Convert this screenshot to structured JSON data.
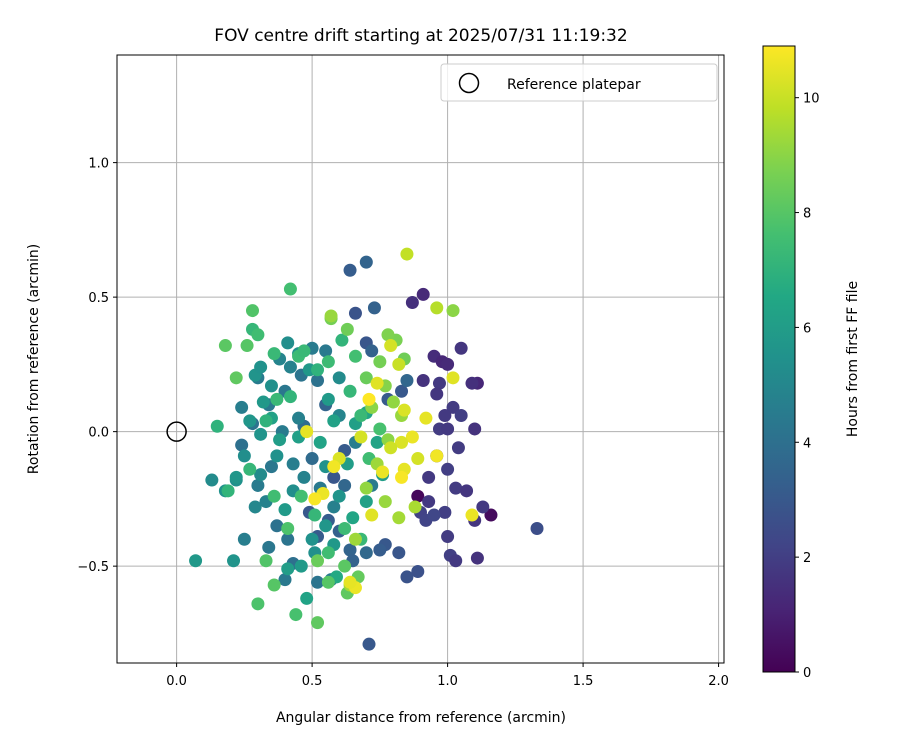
{
  "chart_data": {
    "type": "scatter",
    "title": "FOV centre drift starting at 2025/07/31 11:19:32",
    "xlabel": "Angular distance from reference (arcmin)",
    "ylabel": "Rotation from reference (arcmin)",
    "xlim": [
      -0.22,
      2.02
    ],
    "ylim": [
      -0.86,
      1.4
    ],
    "x_ticks": [
      0.0,
      0.5,
      1.0,
      1.5,
      2.0
    ],
    "x_tick_labels": [
      "0.0",
      "0.5",
      "1.0",
      "1.5",
      "2.0"
    ],
    "y_ticks": [
      -0.5,
      0.0,
      0.5,
      1.0
    ],
    "y_tick_labels": [
      "−0.5",
      "0.0",
      "0.5",
      "1.0"
    ],
    "grid": true,
    "legend": {
      "placement": "upper-right",
      "entries": [
        {
          "label": "Reference platepar",
          "marker": "open-circle"
        }
      ]
    },
    "reference_point": {
      "x": 0.0,
      "y": 0.0
    },
    "colorbar": {
      "label": "Hours from first FF file",
      "colormap": "viridis",
      "range": [
        0,
        10.9
      ],
      "ticks": [
        0,
        2,
        4,
        6,
        8,
        10
      ],
      "tick_labels": [
        "0",
        "2",
        "4",
        "6",
        "8",
        "10"
      ]
    },
    "series": [
      {
        "x_y_hours": [
          [
            0.89,
            -0.24,
            0.2
          ],
          [
            1.16,
            -0.31,
            0.3
          ],
          [
            0.91,
            0.51,
            1.3
          ],
          [
            0.87,
            0.48,
            1.5
          ],
          [
            0.95,
            0.28,
            1.4
          ],
          [
            0.98,
            0.26,
            1.2
          ],
          [
            1.0,
            0.25,
            1.3
          ],
          [
            0.97,
            0.18,
            1.8
          ],
          [
            1.11,
            0.18,
            1.2
          ],
          [
            1.09,
            0.18,
            1.5
          ],
          [
            1.05,
            0.31,
            1.7
          ],
          [
            0.91,
            0.19,
            1.6
          ],
          [
            0.96,
            0.14,
            1.7
          ],
          [
            1.02,
            0.09,
            1.9
          ],
          [
            0.99,
            0.06,
            1.8
          ],
          [
            1.05,
            0.06,
            2.0
          ],
          [
            0.97,
            0.01,
            1.9
          ],
          [
            1.0,
            0.01,
            1.8
          ],
          [
            1.1,
            0.01,
            1.6
          ],
          [
            1.04,
            -0.06,
            1.9
          ],
          [
            0.96,
            -0.09,
            1.7
          ],
          [
            1.0,
            -0.14,
            2.0
          ],
          [
            0.93,
            -0.17,
            1.8
          ],
          [
            1.03,
            -0.21,
            1.9
          ],
          [
            1.07,
            -0.22,
            1.7
          ],
          [
            0.93,
            -0.26,
            1.8
          ],
          [
            0.99,
            -0.3,
            2.0
          ],
          [
            1.13,
            -0.28,
            1.8
          ],
          [
            1.1,
            -0.33,
            1.7
          ],
          [
            1.0,
            -0.39,
            1.9
          ],
          [
            1.01,
            -0.46,
            2.0
          ],
          [
            1.03,
            -0.48,
            1.8
          ],
          [
            1.11,
            -0.47,
            1.6
          ],
          [
            0.9,
            -0.3,
            2.1
          ],
          [
            0.92,
            -0.33,
            2.2
          ],
          [
            0.95,
            -0.31,
            2.3
          ],
          [
            1.33,
            -0.36,
            2.6
          ],
          [
            0.85,
            -0.54,
            2.8
          ],
          [
            0.89,
            -0.52,
            2.7
          ],
          [
            0.82,
            -0.45,
            2.9
          ],
          [
            0.77,
            -0.42,
            3.0
          ],
          [
            0.75,
            -0.44,
            3.2
          ],
          [
            0.71,
            -0.79,
            3.0
          ],
          [
            0.64,
            0.6,
            3.2
          ],
          [
            0.7,
            0.63,
            3.5
          ],
          [
            0.73,
            0.46,
            3.4
          ],
          [
            0.66,
            0.44,
            2.8
          ],
          [
            0.7,
            0.33,
            2.9
          ],
          [
            0.72,
            0.3,
            3.4
          ],
          [
            0.83,
            0.15,
            3.0
          ],
          [
            0.78,
            0.12,
            3.1
          ],
          [
            0.85,
            0.19,
            3.6
          ],
          [
            0.55,
            0.1,
            3.5
          ],
          [
            0.5,
            -0.1,
            3.8
          ],
          [
            0.47,
            0.02,
            3.9
          ],
          [
            0.62,
            -0.2,
            3.6
          ],
          [
            0.64,
            -0.44,
            3.5
          ],
          [
            0.65,
            -0.48,
            3.4
          ],
          [
            0.7,
            -0.45,
            3.7
          ],
          [
            0.6,
            -0.37,
            3.3
          ],
          [
            0.56,
            -0.33,
            3.2
          ],
          [
            0.52,
            -0.39,
            3.1
          ],
          [
            0.49,
            -0.3,
            3.0
          ],
          [
            0.58,
            -0.17,
            2.9
          ],
          [
            0.62,
            -0.07,
            3.1
          ],
          [
            0.41,
            -0.4,
            4.2
          ],
          [
            0.43,
            -0.49,
            4.0
          ],
          [
            0.4,
            -0.55,
            4.4
          ],
          [
            0.52,
            -0.56,
            4.2
          ],
          [
            0.57,
            -0.55,
            4.5
          ],
          [
            0.34,
            -0.43,
            4.3
          ],
          [
            0.25,
            -0.4,
            4.6
          ],
          [
            0.37,
            -0.35,
            4.1
          ],
          [
            0.3,
            -0.2,
            4.5
          ],
          [
            0.35,
            -0.13,
            4.3
          ],
          [
            0.24,
            -0.05,
            4.0
          ],
          [
            0.28,
            0.03,
            4.2
          ],
          [
            0.34,
            0.1,
            4.4
          ],
          [
            0.24,
            0.09,
            4.6
          ],
          [
            0.3,
            0.2,
            4.5
          ],
          [
            0.4,
            0.15,
            4.3
          ],
          [
            0.46,
            0.21,
            4.2
          ],
          [
            0.52,
            0.19,
            4.1
          ],
          [
            0.55,
            0.3,
            4.4
          ],
          [
            0.5,
            0.31,
            4.5
          ],
          [
            0.42,
            0.24,
            4.8
          ],
          [
            0.38,
            0.27,
            4.9
          ],
          [
            0.45,
            0.05,
            4.7
          ],
          [
            0.39,
            0.0,
            4.5
          ],
          [
            0.43,
            -0.12,
            4.6
          ],
          [
            0.47,
            -0.17,
            4.8
          ],
          [
            0.53,
            -0.21,
            4.4
          ],
          [
            0.58,
            -0.28,
            4.7
          ],
          [
            0.33,
            -0.26,
            4.8
          ],
          [
            0.29,
            -0.28,
            5.0
          ],
          [
            0.6,
            0.06,
            4.9
          ],
          [
            0.66,
            -0.04,
            4.6
          ],
          [
            0.72,
            -0.2,
            4.5
          ],
          [
            0.07,
            -0.48,
            5.8
          ],
          [
            0.21,
            -0.48,
            5.6
          ],
          [
            0.13,
            -0.18,
            5.2
          ],
          [
            0.22,
            -0.18,
            5.4
          ],
          [
            0.18,
            -0.22,
            5.5
          ],
          [
            0.22,
            -0.17,
            5.7
          ],
          [
            0.25,
            -0.09,
            5.3
          ],
          [
            0.31,
            -0.16,
            5.2
          ],
          [
            0.37,
            -0.09,
            5.5
          ],
          [
            0.31,
            -0.01,
            5.6
          ],
          [
            0.27,
            0.04,
            5.7
          ],
          [
            0.32,
            0.11,
            5.8
          ],
          [
            0.35,
            0.17,
            5.4
          ],
          [
            0.29,
            0.21,
            5.6
          ],
          [
            0.31,
            0.24,
            5.5
          ],
          [
            0.41,
            0.33,
            5.3
          ],
          [
            0.45,
            0.29,
            5.5
          ],
          [
            0.49,
            0.23,
            5.8
          ],
          [
            0.56,
            0.12,
            5.9
          ],
          [
            0.6,
            0.2,
            5.2
          ],
          [
            0.5,
            -0.4,
            5.5
          ],
          [
            0.46,
            -0.5,
            5.9
          ],
          [
            0.41,
            -0.51,
            6.0
          ],
          [
            0.51,
            -0.45,
            5.4
          ],
          [
            0.55,
            -0.35,
            5.7
          ],
          [
            0.58,
            -0.42,
            5.8
          ],
          [
            0.6,
            -0.24,
            5.6
          ],
          [
            0.55,
            -0.13,
            5.5
          ],
          [
            0.43,
            -0.22,
            5.3
          ],
          [
            0.4,
            -0.29,
            5.9
          ],
          [
            0.38,
            -0.03,
            6.0
          ],
          [
            0.35,
            0.05,
            6.2
          ],
          [
            0.45,
            -0.02,
            6.1
          ],
          [
            0.53,
            -0.04,
            6.3
          ],
          [
            0.58,
            0.04,
            6.2
          ],
          [
            0.63,
            -0.12,
            6.0
          ],
          [
            0.66,
            0.03,
            6.1
          ],
          [
            0.7,
            0.07,
            6.4
          ],
          [
            0.74,
            -0.04,
            6.3
          ],
          [
            0.76,
            -0.16,
            6.0
          ],
          [
            0.7,
            -0.26,
            6.2
          ],
          [
            0.65,
            -0.32,
            6.4
          ],
          [
            0.48,
            -0.62,
            6.3
          ],
          [
            0.59,
            -0.54,
            6.6
          ],
          [
            0.15,
            0.02,
            7.0
          ],
          [
            0.19,
            -0.22,
            7.1
          ],
          [
            0.27,
            -0.14,
            7.2
          ],
          [
            0.33,
            0.04,
            7.0
          ],
          [
            0.37,
            0.12,
            7.3
          ],
          [
            0.42,
            0.13,
            7.1
          ],
          [
            0.45,
            0.28,
            7.4
          ],
          [
            0.36,
            0.29,
            7.3
          ],
          [
            0.28,
            0.38,
            7.2
          ],
          [
            0.3,
            0.36,
            7.5
          ],
          [
            0.47,
            0.3,
            7.3
          ],
          [
            0.52,
            0.23,
            7.0
          ],
          [
            0.56,
            0.26,
            7.4
          ],
          [
            0.61,
            0.34,
            7.1
          ],
          [
            0.66,
            0.28,
            7.6
          ],
          [
            0.64,
            0.15,
            7.2
          ],
          [
            0.68,
            0.06,
            7.3
          ],
          [
            0.71,
            -0.1,
            7.5
          ],
          [
            0.75,
            0.01,
            7.7
          ],
          [
            0.62,
            -0.36,
            7.4
          ],
          [
            0.68,
            -0.4,
            7.3
          ],
          [
            0.56,
            -0.45,
            7.5
          ],
          [
            0.51,
            -0.31,
            7.2
          ],
          [
            0.46,
            -0.24,
            7.6
          ],
          [
            0.41,
            -0.36,
            7.8
          ],
          [
            0.36,
            -0.24,
            7.5
          ],
          [
            0.33,
            -0.48,
            7.9
          ],
          [
            0.36,
            -0.57,
            8.0
          ],
          [
            0.44,
            -0.68,
            7.7
          ],
          [
            0.3,
            -0.64,
            7.8
          ],
          [
            0.28,
            0.45,
            7.9
          ],
          [
            0.42,
            0.53,
            7.6
          ],
          [
            0.18,
            0.32,
            8.1
          ],
          [
            0.26,
            0.32,
            8.0
          ],
          [
            0.22,
            0.2,
            8.2
          ],
          [
            0.56,
            -0.56,
            8.0
          ],
          [
            0.62,
            -0.5,
            8.1
          ],
          [
            0.67,
            -0.54,
            8.3
          ],
          [
            0.63,
            -0.6,
            8.2
          ],
          [
            0.52,
            -0.71,
            8.2
          ],
          [
            0.52,
            -0.48,
            8.4
          ],
          [
            0.63,
            0.38,
            8.5
          ],
          [
            0.57,
            0.42,
            8.6
          ],
          [
            0.7,
            0.2,
            8.4
          ],
          [
            0.75,
            0.26,
            8.6
          ],
          [
            0.81,
            0.34,
            8.7
          ],
          [
            0.84,
            0.27,
            8.5
          ],
          [
            0.78,
            0.36,
            8.8
          ],
          [
            0.77,
            0.17,
            8.9
          ],
          [
            0.72,
            0.09,
            9.0
          ],
          [
            0.8,
            0.11,
            9.1
          ],
          [
            0.83,
            0.06,
            9.2
          ],
          [
            0.78,
            -0.03,
            9.0
          ],
          [
            0.74,
            -0.12,
            9.3
          ],
          [
            0.7,
            -0.21,
            9.1
          ],
          [
            0.77,
            -0.26,
            9.2
          ],
          [
            0.82,
            -0.32,
            9.4
          ],
          [
            0.88,
            -0.28,
            9.5
          ],
          [
            0.66,
            -0.4,
            9.3
          ],
          [
            0.64,
            -0.57,
            9.4
          ],
          [
            0.57,
            0.43,
            9.2
          ],
          [
            1.02,
            0.45,
            9.0
          ],
          [
            0.96,
            0.46,
            9.7
          ],
          [
            0.85,
            0.66,
            9.9
          ],
          [
            0.82,
            0.25,
            10.0
          ],
          [
            0.79,
            0.32,
            10.2
          ],
          [
            0.74,
            0.18,
            10.4
          ],
          [
            0.84,
            0.08,
            10.3
          ],
          [
            0.92,
            0.05,
            10.5
          ],
          [
            0.87,
            -0.02,
            10.6
          ],
          [
            0.83,
            -0.04,
            10.3
          ],
          [
            0.79,
            -0.06,
            10.1
          ],
          [
            0.76,
            -0.15,
            10.6
          ],
          [
            0.84,
            -0.14,
            10.5
          ],
          [
            0.89,
            -0.1,
            10.2
          ],
          [
            0.96,
            -0.09,
            10.7
          ],
          [
            0.72,
            -0.31,
            10.4
          ],
          [
            0.66,
            -0.58,
            10.6
          ],
          [
            0.64,
            -0.56,
            10.5
          ],
          [
            0.6,
            -0.1,
            10.3
          ],
          [
            0.54,
            -0.23,
            10.6
          ],
          [
            0.51,
            -0.25,
            10.8
          ],
          [
            0.48,
            0.0,
            10.5
          ],
          [
            0.58,
            -0.13,
            10.7
          ],
          [
            1.02,
            0.2,
            10.4
          ],
          [
            1.09,
            -0.31,
            10.6
          ],
          [
            0.83,
            -0.17,
            10.8
          ],
          [
            0.71,
            0.12,
            10.9
          ],
          [
            0.68,
            -0.02,
            10.2
          ]
        ]
      }
    ]
  }
}
